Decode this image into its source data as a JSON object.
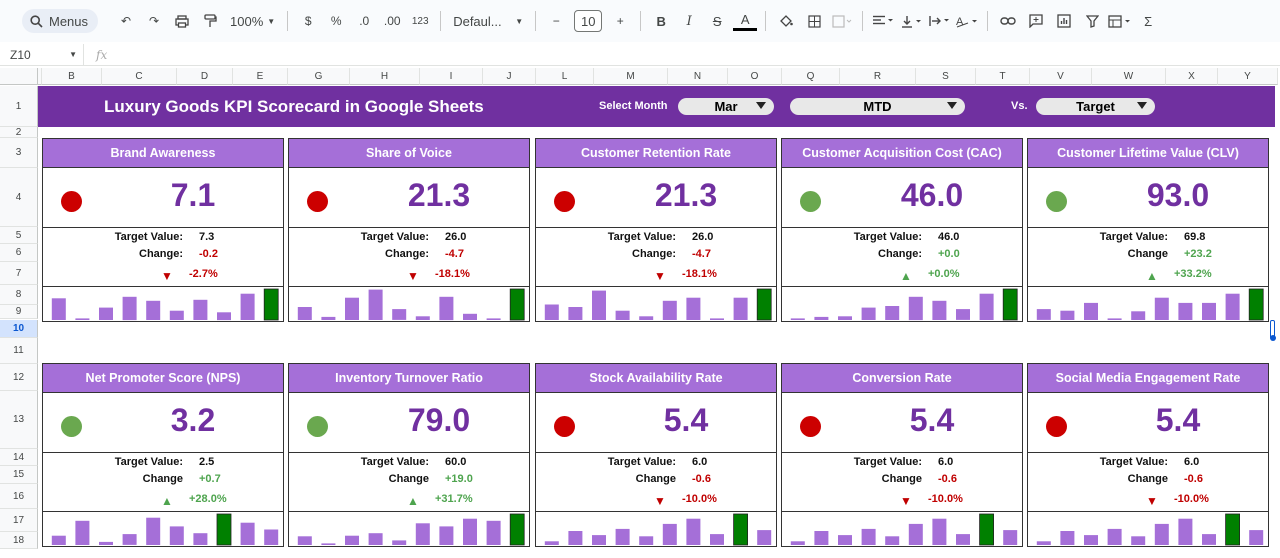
{
  "toolbar": {
    "menus_label": "Menus",
    "zoom": "100%",
    "currency": "$",
    "percent": "%",
    "dec_decrease": ".0",
    "dec_increase": ".00",
    "format_123": "123",
    "font": "Defaul...",
    "font_size": "10",
    "bold": "B",
    "italic": "I",
    "text_color_glyph": "A",
    "sigma": "Σ"
  },
  "formula_bar": {
    "cell_ref": "Z10",
    "fx": "fx",
    "value": ""
  },
  "columns": [
    "B",
    "C",
    "D",
    "E",
    "G",
    "H",
    "I",
    "J",
    "L",
    "M",
    "N",
    "O",
    "Q",
    "R",
    "S",
    "T",
    "V",
    "W",
    "X",
    "Y"
  ],
  "rows": [
    "1",
    "2",
    "3",
    "4",
    "5",
    "6",
    "7",
    "8",
    "9",
    "10",
    "11",
    "12",
    "13",
    "14",
    "15",
    "16",
    "17",
    "18"
  ],
  "header": {
    "title": "Luxury Goods KPI Scorecard in Google Sheets",
    "select_month_label": "Select Month",
    "month": "Mar",
    "period": "MTD",
    "vs_label": "Vs.",
    "compare": "Target"
  },
  "colors": {
    "title_bg": "#7030a0",
    "card_header_bg": "#a56fd8",
    "value_color": "#7030a0",
    "status_red": "#cc0000",
    "status_green": "#6aa84f",
    "bar_normal": "#a56fd8",
    "bar_current": "#008000"
  },
  "cards": [
    {
      "title": "Brand Awareness",
      "value": "7.1",
      "status": "red",
      "target_label": "Target Value:",
      "target": "7.3",
      "change_label": "Change:",
      "change": "-0.2",
      "direction": "down",
      "pct": "-2.7%",
      "bars": [
        0.7,
        0.05,
        0.4,
        0.75,
        0.62,
        0.3,
        0.65,
        0.25,
        0.85,
        1.0
      ]
    },
    {
      "title": "Share of Voice",
      "value": "21.3",
      "status": "red",
      "target_label": "Target Value:",
      "target": "26.0",
      "change_label": "Change:",
      "change": "-4.7",
      "direction": "down",
      "pct": "-18.1%",
      "bars": [
        0.42,
        0.1,
        0.72,
        0.98,
        0.35,
        0.12,
        0.75,
        0.2,
        0.05,
        1.0
      ]
    },
    {
      "title": "Customer Retention Rate",
      "value": "21.3",
      "status": "red",
      "target_label": "Target Value:",
      "target": "26.0",
      "change_label": "Change:",
      "change": "-4.7",
      "direction": "down",
      "pct": "-18.1%",
      "bars": [
        0.5,
        0.42,
        0.95,
        0.3,
        0.12,
        0.62,
        0.72,
        0.05,
        0.72,
        1.0
      ]
    },
    {
      "title": "Customer Acquisition Cost (CAC)",
      "value": "46.0",
      "status": "green",
      "target_label": "Target Value:",
      "target": "46.0",
      "change_label": "Change:",
      "change": "+0.0",
      "direction": "up",
      "pct": "+0.0%",
      "bars": [
        0.05,
        0.1,
        0.12,
        0.4,
        0.45,
        0.75,
        0.62,
        0.35,
        0.85,
        1.0
      ]
    },
    {
      "title": "Customer Lifetime Value (CLV)",
      "value": "93.0",
      "status": "green",
      "target_label": "Target Value:",
      "target": "69.8",
      "change_label": "Change",
      "change": "+23.2",
      "direction": "up",
      "pct": "+33.2%",
      "bars": [
        0.35,
        0.3,
        0.55,
        0.05,
        0.28,
        0.72,
        0.55,
        0.55,
        0.85,
        1.0
      ]
    },
    {
      "title": "Net Promoter Score (NPS)",
      "value": "3.2",
      "status": "green",
      "target_label": "Target Value:",
      "target": "2.5",
      "change_label": "Change",
      "change": "+0.7",
      "direction": "up",
      "pct": "+28.0%",
      "bars": [
        0.3,
        0.78,
        0.1,
        0.35,
        0.88,
        0.6,
        0.38,
        1.0,
        0.72,
        0.5
      ]
    },
    {
      "title": "Inventory Turnover Ratio",
      "value": "79.0",
      "status": "green",
      "target_label": "Target Value:",
      "target": "60.0",
      "change_label": "Change",
      "change": "+19.0",
      "direction": "up",
      "pct": "+31.7%",
      "bars": [
        0.28,
        0.05,
        0.3,
        0.38,
        0.15,
        0.7,
        0.6,
        0.85,
        0.78,
        1.0
      ]
    },
    {
      "title": "Stock Availability Rate",
      "value": "5.4",
      "status": "red",
      "target_label": "Target Value:",
      "target": "6.0",
      "change_label": "Change",
      "change": "-0.6",
      "direction": "down",
      "pct": "-10.0%",
      "bars": [
        0.12,
        0.45,
        0.32,
        0.52,
        0.28,
        0.68,
        0.85,
        0.35,
        1.0,
        0.48
      ]
    },
    {
      "title": "Conversion Rate",
      "value": "5.4",
      "status": "red",
      "target_label": "Target Value:",
      "target": "6.0",
      "change_label": "Change",
      "change": "-0.6",
      "direction": "down",
      "pct": "-10.0%",
      "bars": [
        0.12,
        0.45,
        0.32,
        0.52,
        0.28,
        0.68,
        0.85,
        0.35,
        1.0,
        0.48
      ]
    },
    {
      "title": "Social Media Engagement Rate",
      "value": "5.4",
      "status": "red",
      "target_label": "Target Value:",
      "target": "6.0",
      "change_label": "Change",
      "change": "-0.6",
      "direction": "down",
      "pct": "-10.0%",
      "bars": [
        0.12,
        0.45,
        0.32,
        0.52,
        0.28,
        0.68,
        0.85,
        0.35,
        1.0,
        0.48
      ]
    }
  ]
}
